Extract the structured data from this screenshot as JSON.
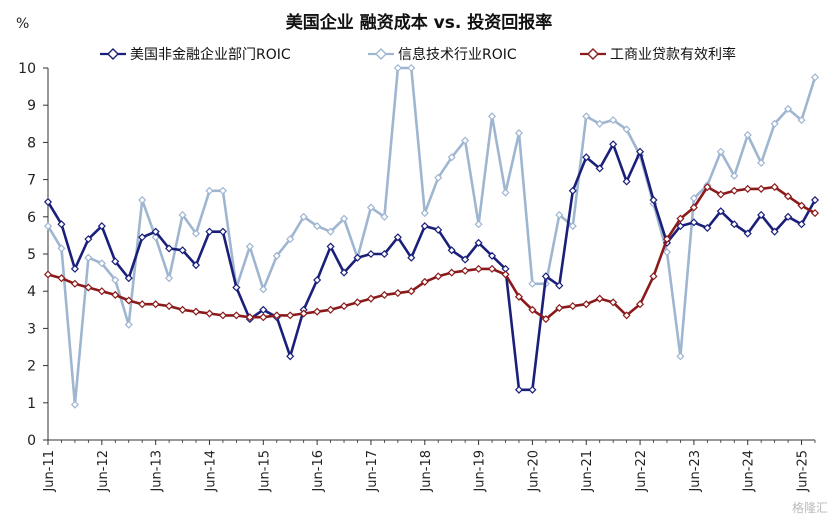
{
  "chart_data": {
    "type": "line",
    "title": "美国企业 融资成本 vs. 投资回报率",
    "unit_label": "%",
    "ylim": [
      0,
      10
    ],
    "yticks": [
      "0",
      "1",
      "2",
      "3",
      "4",
      "5",
      "6",
      "7",
      "8",
      "9",
      "10"
    ],
    "xticks": [
      "Jun-11",
      "Jun-12",
      "Jun-13",
      "Jun-14",
      "Jun-15",
      "Jun-16",
      "Jun-17",
      "Jun-18",
      "Jun-19",
      "Jun-20",
      "Jun-21",
      "Jun-22",
      "Jun-23",
      "Jun-24",
      "Jun-25"
    ],
    "x_period": "quarterly",
    "legend_placement": "top",
    "grid": false,
    "series": [
      {
        "name": "美国非金融企业部门ROIC",
        "color": "#1a1f7a",
        "values": [
          6.4,
          5.8,
          4.6,
          5.4,
          5.75,
          4.8,
          4.35,
          5.45,
          5.6,
          5.15,
          5.1,
          4.7,
          5.6,
          5.6,
          4.1,
          3.25,
          3.5,
          3.3,
          2.25,
          3.5,
          4.3,
          5.2,
          4.5,
          4.9,
          5.0,
          5.0,
          5.45,
          4.9,
          5.75,
          5.65,
          5.1,
          4.85,
          5.3,
          4.95,
          4.6,
          1.35,
          1.35,
          4.4,
          4.15,
          6.7,
          7.6,
          7.3,
          7.95,
          6.95,
          7.75,
          6.45,
          5.3,
          5.75,
          5.85,
          5.7,
          6.15,
          5.8,
          5.55,
          6.05,
          5.6,
          6.0,
          5.8,
          6.45
        ]
      },
      {
        "name": "信息技术行业ROIC",
        "color": "#9fb6d1",
        "values": [
          5.75,
          5.15,
          0.95,
          4.9,
          4.75,
          4.3,
          3.1,
          6.45,
          5.45,
          4.35,
          6.05,
          5.55,
          6.7,
          6.7,
          4.1,
          5.2,
          4.05,
          4.95,
          5.4,
          6.0,
          5.75,
          5.6,
          5.95,
          4.9,
          6.25,
          6.0,
          10.0,
          10.0,
          6.1,
          7.05,
          7.6,
          8.05,
          5.8,
          8.7,
          6.65,
          8.25,
          4.2,
          4.2,
          6.05,
          5.75,
          8.7,
          8.5,
          8.6,
          8.35,
          7.65,
          6.35,
          5.05,
          2.25,
          6.5,
          6.85,
          7.75,
          7.1,
          8.2,
          7.45,
          8.5,
          8.9,
          8.6,
          9.75
        ]
      },
      {
        "name": "工商业贷款有效利率",
        "color": "#8b1a1a",
        "values": [
          4.45,
          4.35,
          4.2,
          4.1,
          4.0,
          3.9,
          3.75,
          3.65,
          3.65,
          3.6,
          3.5,
          3.45,
          3.4,
          3.35,
          3.35,
          3.3,
          3.3,
          3.35,
          3.35,
          3.4,
          3.45,
          3.5,
          3.6,
          3.7,
          3.8,
          3.9,
          3.95,
          4.0,
          4.25,
          4.4,
          4.5,
          4.55,
          4.6,
          4.6,
          4.45,
          3.85,
          3.5,
          3.25,
          3.55,
          3.6,
          3.65,
          3.8,
          3.7,
          3.35,
          3.65,
          4.4,
          5.4,
          5.95,
          6.25,
          6.8,
          6.6,
          6.7,
          6.75,
          6.75,
          6.8,
          6.55,
          6.3,
          6.1
        ]
      }
    ]
  },
  "watermark": "格隆汇"
}
